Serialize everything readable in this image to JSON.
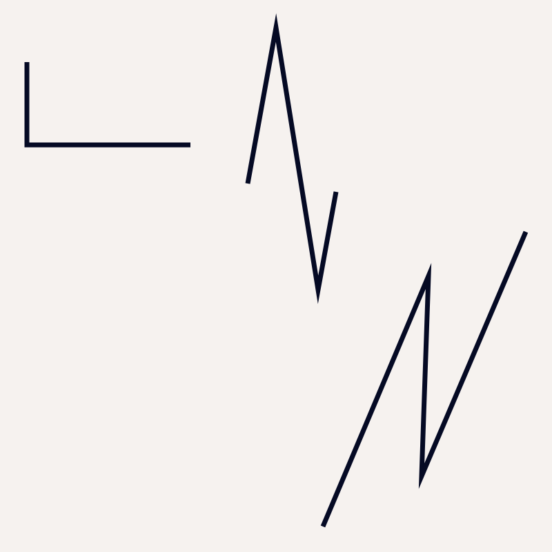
{
  "colors": {
    "background": "#f6f2ef",
    "stroke": "#050a24"
  },
  "shapes": [
    {
      "id": "l-shape"
    },
    {
      "id": "zigzag-upper"
    },
    {
      "id": "zigzag-lower"
    }
  ]
}
